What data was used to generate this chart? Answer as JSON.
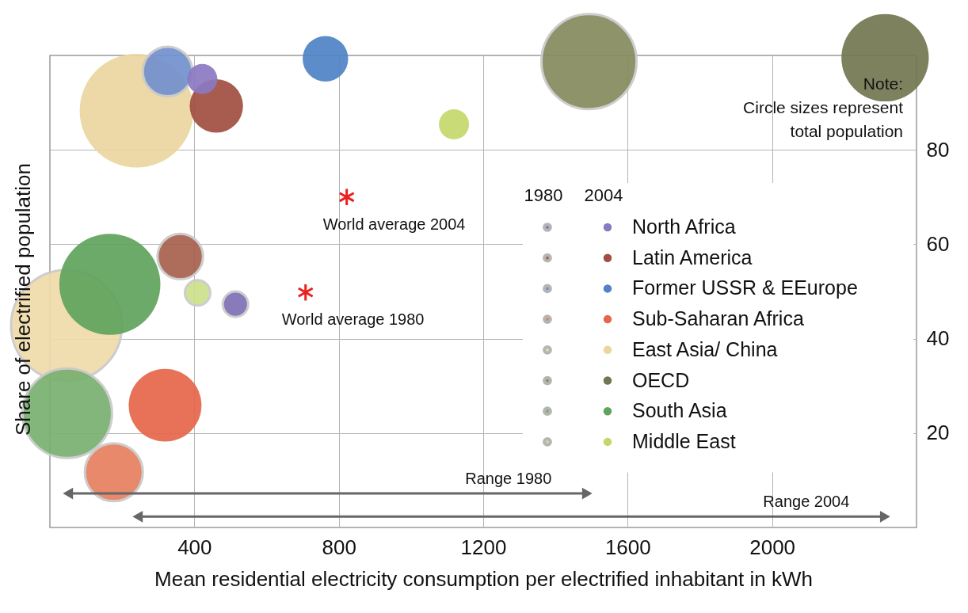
{
  "chart_data": {
    "type": "bubble",
    "xlabel": "Mean residential electricity consumption per electrified inhabitant in kWh",
    "ylabel": "Share of electrified population",
    "xlim": [
      0,
      2400
    ],
    "ylim": [
      0,
      100
    ],
    "xticks": [
      400,
      800,
      1200,
      1600,
      2000
    ],
    "yticks": [
      20,
      40,
      60,
      80
    ],
    "grid": true,
    "legend": "right",
    "marker": "circle",
    "series": [
      {
        "name": "North Africa",
        "colors": [
          "#8070b4",
          "#8b7ac2"
        ],
        "x": [
          514,
          422
        ],
        "values": [
          47.3,
          95
        ],
        "sizes": [
          0.05,
          0.07
        ]
      },
      {
        "name": "Latin America",
        "colors": [
          "#a8604e",
          "#a04e40"
        ],
        "x": [
          361,
          461
        ],
        "values": [
          57.4,
          89.3
        ],
        "sizes": [
          0.16,
          0.22
        ]
      },
      {
        "name": "Former USSR & EEurope",
        "colors": [
          "#7391cf",
          "#4f82c6"
        ],
        "x": [
          326,
          763
        ],
        "values": [
          96.6,
          99.3
        ],
        "sizes": [
          0.19,
          0.16
        ]
      },
      {
        "name": "Sub-Saharan Africa",
        "colors": [
          "#e88060",
          "#e5664a"
        ],
        "x": [
          177,
          319
        ],
        "values": [
          11.7,
          25.9
        ],
        "sizes": [
          0.26,
          0.41
        ]
      },
      {
        "name": "East Asia/ China",
        "colors": [
          "#f0dcaa",
          "#ecd6a0"
        ],
        "x": [
          46,
          240
        ],
        "values": [
          42.8,
          88.3
        ],
        "sizes": [
          0.95,
          1
        ]
      },
      {
        "name": "OECD",
        "colors": [
          "#868a5e",
          "#737650"
        ],
        "x": [
          1493,
          2313
        ],
        "values": [
          98.7,
          99.5
        ],
        "sizes": [
          0.7,
          0.59
        ]
      },
      {
        "name": "South Asia",
        "colors": [
          "#79b070",
          "#5fa35c"
        ],
        "x": [
          48,
          166
        ],
        "values": [
          24.2,
          51.5
        ],
        "sizes": [
          0.62,
          0.79
        ]
      },
      {
        "name": "Middle East",
        "colors": [
          "#cde08a",
          "#c3d86a"
        ],
        "x": [
          409,
          1119
        ],
        "values": [
          49.7,
          85.4
        ],
        "sizes": [
          0.05,
          0.07
        ]
      },
      {
        "type": "scatter",
        "marker": "cross",
        "color": "#e8211f",
        "x": [
          708,
          822
        ],
        "values": [
          49.8,
          70
        ]
      },
      {
        "type": "line",
        "marker": "triangle",
        "color": "#666666",
        "x": [
          50,
          1488
        ],
        "values": [
          7.2,
          7.2
        ]
      },
      {
        "type": "line",
        "marker": "triangle",
        "color": "#666666",
        "x": [
          243,
          2313
        ],
        "values": [
          2.3,
          2.3
        ]
      }
    ],
    "annotations": [
      "1980",
      "2004",
      {
        "text": "World average 1980",
        "x": 708,
        "y": 49.8
      },
      {
        "text": "World average 2004",
        "x": 822,
        "y": 70
      },
      {
        "text": "Range 1980",
        "x": 1488,
        "y": 7.2
      },
      {
        "text": "Range 2004",
        "x": 2313,
        "y": 2.3
      },
      "Note:\nCircle sizes represent\ntotal population"
    ]
  }
}
